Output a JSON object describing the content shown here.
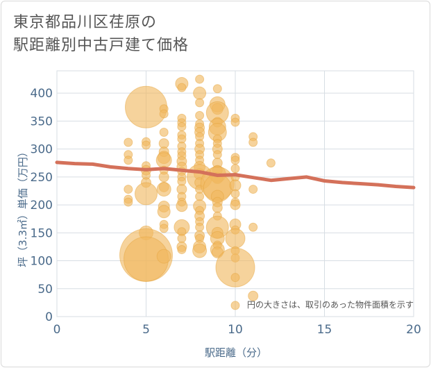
{
  "title_lines": [
    "東京都品川区荏原の",
    "駅距離別中古戸建て価格"
  ],
  "note": "円の大きさは、取引のあった物件面積を示す",
  "colors": {
    "bubble_fill": "#f0b860",
    "bubble_stroke": "#e6a540",
    "line": "#d4715a",
    "grid": "#d7dde3",
    "axis_text": "#4a6a8a"
  },
  "chart_data": {
    "type": "scatter",
    "xlabel": "駅距離（分）",
    "ylabel": "坪（3.3㎡）単価（万円）",
    "xlim": [
      0,
      20
    ],
    "ylim": [
      0,
      440
    ],
    "x_ticks": [
      0,
      5,
      10,
      15,
      20
    ],
    "y_ticks": [
      0,
      50,
      100,
      150,
      200,
      250,
      300,
      350,
      400
    ],
    "grid": true,
    "points": [
      {
        "x": 4,
        "y": 312,
        "s": 6
      },
      {
        "x": 4,
        "y": 290,
        "s": 6
      },
      {
        "x": 4,
        "y": 280,
        "s": 6
      },
      {
        "x": 4,
        "y": 228,
        "s": 6
      },
      {
        "x": 4,
        "y": 210,
        "s": 6
      },
      {
        "x": 4,
        "y": 205,
        "s": 6
      },
      {
        "x": 5,
        "y": 375,
        "s": 30
      },
      {
        "x": 5,
        "y": 313,
        "s": 6
      },
      {
        "x": 5,
        "y": 307,
        "s": 6
      },
      {
        "x": 5,
        "y": 270,
        "s": 6
      },
      {
        "x": 5,
        "y": 262,
        "s": 7
      },
      {
        "x": 5,
        "y": 253,
        "s": 6
      },
      {
        "x": 5,
        "y": 240,
        "s": 7
      },
      {
        "x": 5,
        "y": 220,
        "s": 16
      },
      {
        "x": 5,
        "y": 150,
        "s": 10
      },
      {
        "x": 5,
        "y": 110,
        "s": 38
      },
      {
        "x": 5,
        "y": 103,
        "s": 32
      },
      {
        "x": 6,
        "y": 372,
        "s": 6
      },
      {
        "x": 6,
        "y": 363,
        "s": 6
      },
      {
        "x": 6,
        "y": 330,
        "s": 6
      },
      {
        "x": 6,
        "y": 310,
        "s": 7
      },
      {
        "x": 6,
        "y": 295,
        "s": 7
      },
      {
        "x": 6,
        "y": 285,
        "s": 9
      },
      {
        "x": 6,
        "y": 280,
        "s": 11
      },
      {
        "x": 6,
        "y": 262,
        "s": 6
      },
      {
        "x": 6,
        "y": 250,
        "s": 7
      },
      {
        "x": 6,
        "y": 232,
        "s": 7
      },
      {
        "x": 6,
        "y": 228,
        "s": 10
      },
      {
        "x": 6,
        "y": 197,
        "s": 8
      },
      {
        "x": 6,
        "y": 188,
        "s": 9
      },
      {
        "x": 6,
        "y": 165,
        "s": 6
      },
      {
        "x": 6,
        "y": 158,
        "s": 6
      },
      {
        "x": 6,
        "y": 108,
        "s": 10
      },
      {
        "x": 7,
        "y": 417,
        "s": 9
      },
      {
        "x": 7,
        "y": 410,
        "s": 6
      },
      {
        "x": 7,
        "y": 355,
        "s": 6
      },
      {
        "x": 7,
        "y": 347,
        "s": 6
      },
      {
        "x": 7,
        "y": 340,
        "s": 6
      },
      {
        "x": 7,
        "y": 325,
        "s": 6
      },
      {
        "x": 7,
        "y": 318,
        "s": 6
      },
      {
        "x": 7,
        "y": 305,
        "s": 6
      },
      {
        "x": 7,
        "y": 295,
        "s": 6
      },
      {
        "x": 7,
        "y": 288,
        "s": 6
      },
      {
        "x": 7,
        "y": 278,
        "s": 7
      },
      {
        "x": 7,
        "y": 268,
        "s": 7
      },
      {
        "x": 7,
        "y": 260,
        "s": 6
      },
      {
        "x": 7,
        "y": 250,
        "s": 6
      },
      {
        "x": 7,
        "y": 242,
        "s": 6
      },
      {
        "x": 7,
        "y": 228,
        "s": 7
      },
      {
        "x": 7,
        "y": 215,
        "s": 6
      },
      {
        "x": 7,
        "y": 205,
        "s": 6
      },
      {
        "x": 7,
        "y": 198,
        "s": 8
      },
      {
        "x": 7,
        "y": 160,
        "s": 11
      },
      {
        "x": 7,
        "y": 152,
        "s": 6
      },
      {
        "x": 7,
        "y": 140,
        "s": 6
      },
      {
        "x": 7,
        "y": 125,
        "s": 7
      },
      {
        "x": 7,
        "y": 120,
        "s": 6
      },
      {
        "x": 8,
        "y": 425,
        "s": 6
      },
      {
        "x": 8,
        "y": 400,
        "s": 9
      },
      {
        "x": 8,
        "y": 383,
        "s": 6
      },
      {
        "x": 8,
        "y": 360,
        "s": 6
      },
      {
        "x": 8,
        "y": 345,
        "s": 6
      },
      {
        "x": 8,
        "y": 338,
        "s": 7
      },
      {
        "x": 8,
        "y": 330,
        "s": 7
      },
      {
        "x": 8,
        "y": 322,
        "s": 6
      },
      {
        "x": 8,
        "y": 310,
        "s": 6
      },
      {
        "x": 8,
        "y": 300,
        "s": 7
      },
      {
        "x": 8,
        "y": 290,
        "s": 6
      },
      {
        "x": 8,
        "y": 280,
        "s": 6
      },
      {
        "x": 8,
        "y": 268,
        "s": 8
      },
      {
        "x": 8,
        "y": 255,
        "s": 8
      },
      {
        "x": 8,
        "y": 250,
        "s": 18
      },
      {
        "x": 8,
        "y": 240,
        "s": 7
      },
      {
        "x": 8,
        "y": 228,
        "s": 6
      },
      {
        "x": 8,
        "y": 215,
        "s": 6
      },
      {
        "x": 8,
        "y": 198,
        "s": 9
      },
      {
        "x": 8,
        "y": 190,
        "s": 6
      },
      {
        "x": 8,
        "y": 180,
        "s": 7
      },
      {
        "x": 8,
        "y": 170,
        "s": 6
      },
      {
        "x": 8,
        "y": 160,
        "s": 6
      },
      {
        "x": 8,
        "y": 145,
        "s": 7
      },
      {
        "x": 8,
        "y": 140,
        "s": 6
      },
      {
        "x": 8,
        "y": 125,
        "s": 9
      },
      {
        "x": 8,
        "y": 118,
        "s": 10
      },
      {
        "x": 9,
        "y": 408,
        "s": 6
      },
      {
        "x": 9,
        "y": 380,
        "s": 11
      },
      {
        "x": 9,
        "y": 372,
        "s": 8
      },
      {
        "x": 9,
        "y": 365,
        "s": 16
      },
      {
        "x": 9,
        "y": 348,
        "s": 7
      },
      {
        "x": 9,
        "y": 340,
        "s": 12
      },
      {
        "x": 9,
        "y": 330,
        "s": 13
      },
      {
        "x": 9,
        "y": 318,
        "s": 6
      },
      {
        "x": 9,
        "y": 310,
        "s": 6
      },
      {
        "x": 9,
        "y": 300,
        "s": 7
      },
      {
        "x": 9,
        "y": 290,
        "s": 6
      },
      {
        "x": 9,
        "y": 275,
        "s": 7
      },
      {
        "x": 9,
        "y": 262,
        "s": 7
      },
      {
        "x": 9,
        "y": 255,
        "s": 12
      },
      {
        "x": 9,
        "y": 248,
        "s": 8
      },
      {
        "x": 9,
        "y": 238,
        "s": 24
      },
      {
        "x": 9,
        "y": 230,
        "s": 20
      },
      {
        "x": 9,
        "y": 215,
        "s": 9
      },
      {
        "x": 9,
        "y": 205,
        "s": 7
      },
      {
        "x": 9,
        "y": 195,
        "s": 7
      },
      {
        "x": 9,
        "y": 180,
        "s": 6
      },
      {
        "x": 9,
        "y": 160,
        "s": 16
      },
      {
        "x": 9,
        "y": 150,
        "s": 8
      },
      {
        "x": 9,
        "y": 140,
        "s": 10
      },
      {
        "x": 9,
        "y": 128,
        "s": 6
      },
      {
        "x": 9,
        "y": 120,
        "s": 10
      },
      {
        "x": 9,
        "y": 115,
        "s": 8
      },
      {
        "x": 10,
        "y": 355,
        "s": 6
      },
      {
        "x": 10,
        "y": 348,
        "s": 6
      },
      {
        "x": 10,
        "y": 285,
        "s": 6
      },
      {
        "x": 10,
        "y": 280,
        "s": 6
      },
      {
        "x": 10,
        "y": 265,
        "s": 6
      },
      {
        "x": 10,
        "y": 250,
        "s": 6
      },
      {
        "x": 10,
        "y": 235,
        "s": 8
      },
      {
        "x": 10,
        "y": 220,
        "s": 6
      },
      {
        "x": 10,
        "y": 205,
        "s": 6
      },
      {
        "x": 10,
        "y": 200,
        "s": 7
      },
      {
        "x": 10,
        "y": 165,
        "s": 8
      },
      {
        "x": 10,
        "y": 155,
        "s": 6
      },
      {
        "x": 10,
        "y": 140,
        "s": 14
      },
      {
        "x": 10,
        "y": 118,
        "s": 6
      },
      {
        "x": 10,
        "y": 105,
        "s": 6
      },
      {
        "x": 10,
        "y": 88,
        "s": 28
      },
      {
        "x": 10,
        "y": 70,
        "s": 6
      },
      {
        "x": 10,
        "y": 20,
        "s": 6
      },
      {
        "x": 11,
        "y": 322,
        "s": 6
      },
      {
        "x": 11,
        "y": 312,
        "s": 6
      },
      {
        "x": 11,
        "y": 228,
        "s": 6
      },
      {
        "x": 11,
        "y": 160,
        "s": 6
      },
      {
        "x": 11,
        "y": 37,
        "s": 7
      },
      {
        "x": 12,
        "y": 275,
        "s": 6
      }
    ],
    "trend_line": {
      "x": [
        0,
        1,
        2,
        3,
        4,
        5,
        6,
        7,
        8,
        9,
        10,
        11,
        12,
        13,
        14,
        15,
        16,
        17,
        18,
        19,
        20
      ],
      "y": [
        276,
        274,
        273,
        268,
        265,
        263,
        265,
        262,
        259,
        253,
        254,
        249,
        244,
        247,
        250,
        243,
        240,
        238,
        236,
        233,
        231
      ]
    }
  }
}
